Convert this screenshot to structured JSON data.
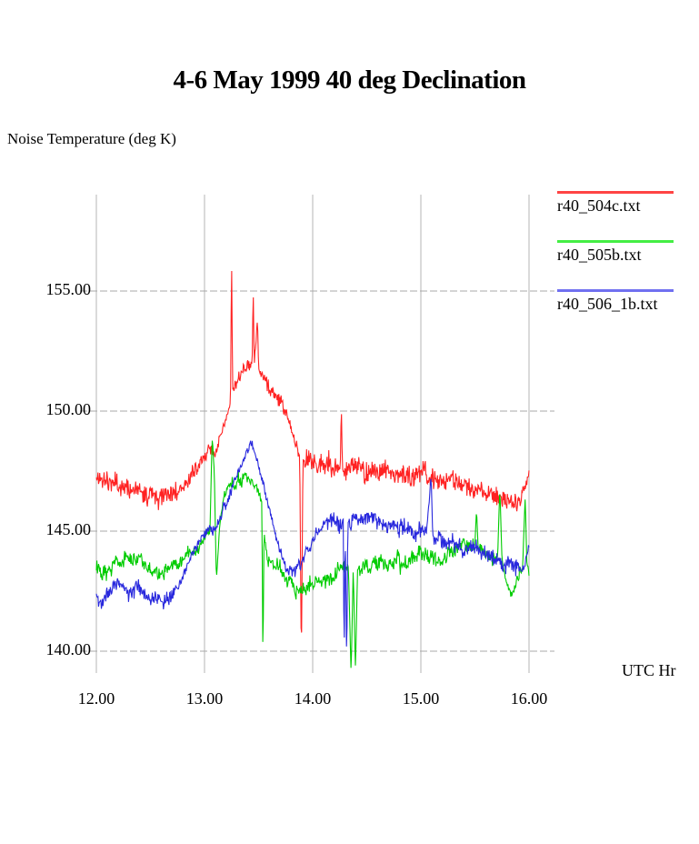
{
  "title": "4-6 May 1999 40 deg Declination",
  "y_axis_label": "Noise Temperature (deg K)",
  "x_axis_label": "UTC Hr",
  "colors": {
    "grid": "#a9a9a9",
    "background": "#ffffff"
  },
  "chart_data": {
    "type": "line",
    "title": "4-6 May 1999 40 deg Declination",
    "xlabel": "UTC Hr",
    "ylabel": "Noise Temperature (deg K)",
    "x_ticks": [
      12.0,
      13.0,
      14.0,
      15.0,
      16.0
    ],
    "y_ticks": [
      155.0,
      150.0,
      145.0,
      140.0
    ],
    "x_tick_labels": [
      "12.00",
      "13.00",
      "14.00",
      "15.00",
      "16.00"
    ],
    "y_tick_labels": [
      "155.00",
      "150.00",
      "145.00",
      "140.00"
    ],
    "xlim": [
      12.0,
      16.0
    ],
    "ylim": [
      139.0,
      159.0
    ],
    "grid": true,
    "legend_position": "right",
    "series": [
      {
        "name": "r40_504c.txt",
        "color": "#ff2222",
        "legend_color": "#ff4444",
        "noise_amp": 0.4,
        "seed": 11,
        "trend": [
          [
            12.0,
            147.2
          ],
          [
            12.2,
            146.9
          ],
          [
            12.4,
            146.8
          ],
          [
            12.6,
            146.7
          ],
          [
            12.8,
            147.0
          ],
          [
            12.95,
            147.7
          ],
          [
            13.03,
            148.3
          ],
          [
            13.06,
            148.6
          ],
          [
            13.09,
            148.0
          ],
          [
            13.15,
            148.9
          ],
          [
            13.21,
            149.7
          ],
          [
            13.24,
            150.4
          ],
          [
            13.25,
            156.5
          ],
          [
            13.26,
            150.9
          ],
          [
            13.32,
            151.4
          ],
          [
            13.38,
            151.8
          ],
          [
            13.44,
            152.0
          ],
          [
            13.45,
            155.0
          ],
          [
            13.46,
            151.9
          ],
          [
            13.49,
            153.8
          ],
          [
            13.5,
            151.7
          ],
          [
            13.56,
            151.3
          ],
          [
            13.63,
            150.8
          ],
          [
            13.7,
            150.4
          ],
          [
            13.76,
            149.8
          ],
          [
            13.82,
            148.9
          ],
          [
            13.88,
            148.1
          ],
          [
            13.895,
            139.4
          ],
          [
            13.91,
            148.0
          ],
          [
            14.0,
            147.9
          ],
          [
            14.1,
            147.7
          ],
          [
            14.2,
            147.6
          ],
          [
            14.255,
            147.6
          ],
          [
            14.265,
            150.3
          ],
          [
            14.275,
            147.6
          ],
          [
            14.4,
            147.5
          ],
          [
            14.6,
            147.5
          ],
          [
            14.8,
            147.3
          ],
          [
            15.0,
            147.3
          ],
          [
            15.2,
            147.1
          ],
          [
            15.4,
            146.9
          ],
          [
            15.6,
            146.7
          ],
          [
            15.8,
            146.4
          ],
          [
            15.9,
            146.2
          ],
          [
            15.96,
            146.6
          ],
          [
            16.0,
            147.4
          ]
        ]
      },
      {
        "name": "r40_505b.txt",
        "color": "#00cc00",
        "legend_color": "#44ee44",
        "noise_amp": 0.32,
        "seed": 22,
        "trend": [
          [
            12.0,
            143.6
          ],
          [
            12.15,
            143.6
          ],
          [
            12.25,
            143.9
          ],
          [
            12.35,
            143.8
          ],
          [
            12.5,
            143.4
          ],
          [
            12.62,
            143.2
          ],
          [
            12.75,
            143.5
          ],
          [
            12.88,
            144.1
          ],
          [
            13.0,
            144.6
          ],
          [
            13.05,
            144.9
          ],
          [
            13.07,
            148.8
          ],
          [
            13.09,
            147.5
          ],
          [
            13.11,
            142.9
          ],
          [
            13.14,
            145.3
          ],
          [
            13.18,
            146.4
          ],
          [
            13.25,
            146.9
          ],
          [
            13.32,
            147.2
          ],
          [
            13.38,
            147.4
          ],
          [
            13.44,
            147.1
          ],
          [
            13.5,
            146.6
          ],
          [
            13.53,
            146.2
          ],
          [
            13.54,
            139.3
          ],
          [
            13.55,
            145.0
          ],
          [
            13.58,
            143.9
          ],
          [
            13.65,
            143.5
          ],
          [
            13.75,
            143.0
          ],
          [
            13.85,
            142.6
          ],
          [
            13.95,
            142.5
          ],
          [
            14.05,
            142.8
          ],
          [
            14.15,
            143.1
          ],
          [
            14.25,
            143.3
          ],
          [
            14.33,
            143.5
          ],
          [
            14.355,
            139.0
          ],
          [
            14.375,
            143.4
          ],
          [
            14.395,
            139.1
          ],
          [
            14.415,
            143.4
          ],
          [
            14.55,
            143.6
          ],
          [
            14.75,
            143.7
          ],
          [
            14.95,
            143.8
          ],
          [
            15.1,
            143.9
          ],
          [
            15.25,
            144.2
          ],
          [
            15.38,
            144.5
          ],
          [
            15.5,
            144.4
          ],
          [
            15.515,
            146.0
          ],
          [
            15.53,
            144.2
          ],
          [
            15.62,
            144.0
          ],
          [
            15.71,
            143.9
          ],
          [
            15.73,
            146.8
          ],
          [
            15.75,
            143.8
          ],
          [
            15.8,
            142.7
          ],
          [
            15.84,
            142.3
          ],
          [
            15.89,
            143.0
          ],
          [
            15.94,
            143.4
          ],
          [
            15.965,
            146.5
          ],
          [
            15.98,
            143.6
          ],
          [
            16.0,
            143.3
          ]
        ]
      },
      {
        "name": "r40_506_1b.txt",
        "color": "#2828dd",
        "legend_color": "#7070f0",
        "noise_amp": 0.34,
        "seed": 33,
        "trend": [
          [
            12.0,
            142.3
          ],
          [
            12.04,
            141.8
          ],
          [
            12.1,
            142.4
          ],
          [
            12.2,
            142.7
          ],
          [
            12.3,
            142.4
          ],
          [
            12.4,
            142.6
          ],
          [
            12.5,
            142.1
          ],
          [
            12.6,
            141.9
          ],
          [
            12.7,
            142.3
          ],
          [
            12.8,
            143.2
          ],
          [
            12.9,
            144.1
          ],
          [
            13.0,
            144.9
          ],
          [
            13.05,
            145.2
          ],
          [
            13.1,
            145.0
          ],
          [
            13.16,
            145.7
          ],
          [
            13.22,
            146.4
          ],
          [
            13.28,
            147.1
          ],
          [
            13.34,
            147.7
          ],
          [
            13.4,
            148.3
          ],
          [
            13.43,
            148.7
          ],
          [
            13.47,
            148.2
          ],
          [
            13.52,
            147.4
          ],
          [
            13.57,
            146.5
          ],
          [
            13.62,
            145.6
          ],
          [
            13.67,
            144.7
          ],
          [
            13.72,
            143.9
          ],
          [
            13.77,
            143.3
          ],
          [
            13.82,
            143.2
          ],
          [
            13.87,
            143.4
          ],
          [
            13.92,
            143.8
          ],
          [
            13.98,
            144.4
          ],
          [
            14.05,
            145.0
          ],
          [
            14.12,
            145.3
          ],
          [
            14.22,
            145.4
          ],
          [
            14.283,
            145.5
          ],
          [
            14.29,
            139.2
          ],
          [
            14.3,
            145.4
          ],
          [
            14.315,
            139.2
          ],
          [
            14.325,
            145.4
          ],
          [
            14.45,
            145.3
          ],
          [
            14.6,
            145.4
          ],
          [
            14.75,
            145.2
          ],
          [
            14.9,
            145.1
          ],
          [
            15.05,
            144.9
          ],
          [
            15.095,
            147.3
          ],
          [
            15.11,
            144.8
          ],
          [
            15.25,
            144.7
          ],
          [
            15.4,
            144.4
          ],
          [
            15.55,
            144.0
          ],
          [
            15.7,
            143.7
          ],
          [
            15.85,
            143.6
          ],
          [
            15.95,
            143.4
          ],
          [
            16.0,
            144.5
          ]
        ]
      }
    ]
  }
}
